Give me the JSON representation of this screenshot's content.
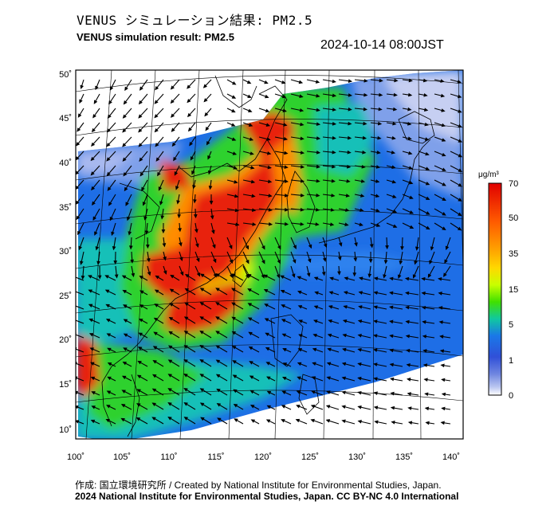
{
  "title_ja": "VENUS シミュレーション結果: PM2.5",
  "title_en": "VENUS simulation result: PM2.5",
  "timestamp": "2024-10-14 08:00JST",
  "credit": "作成: 国立環境研究所 / Created by National Institute for Environmental Studies, Japan.",
  "copyright": "2024 National Institute for Environmental Studies, Japan. CC BY-NC 4.0 International",
  "map": {
    "lon_ticks": [
      "100˚",
      "105˚",
      "110˚",
      "115˚",
      "120˚",
      "125˚",
      "130˚",
      "135˚",
      "140˚"
    ],
    "lat_ticks": [
      "50˚",
      "45˚",
      "40˚",
      "35˚",
      "30˚",
      "25˚",
      "20˚",
      "15˚",
      "10˚"
    ]
  },
  "colorbar": {
    "unit": "μg/m³",
    "labels": [
      "70",
      "50",
      "35",
      "15",
      "5",
      "1",
      "0"
    ],
    "colors": [
      "#e00000",
      "#ff5a00",
      "#ff9a00",
      "#ffd800",
      "#c8ff00",
      "#40e000",
      "#10c8a0",
      "#1a78e8",
      "#3050d8",
      "#6f86e0",
      "#b8c4f0",
      "#ffffff"
    ]
  },
  "palette": {
    "high": "#e8200a",
    "orange": "#ff8c00",
    "green": "#2ed12e",
    "cyan": "#18c0b8",
    "blue": "#1e6ee6",
    "light_blue": "#7fa0ea",
    "pale": "#c6cff2"
  }
}
